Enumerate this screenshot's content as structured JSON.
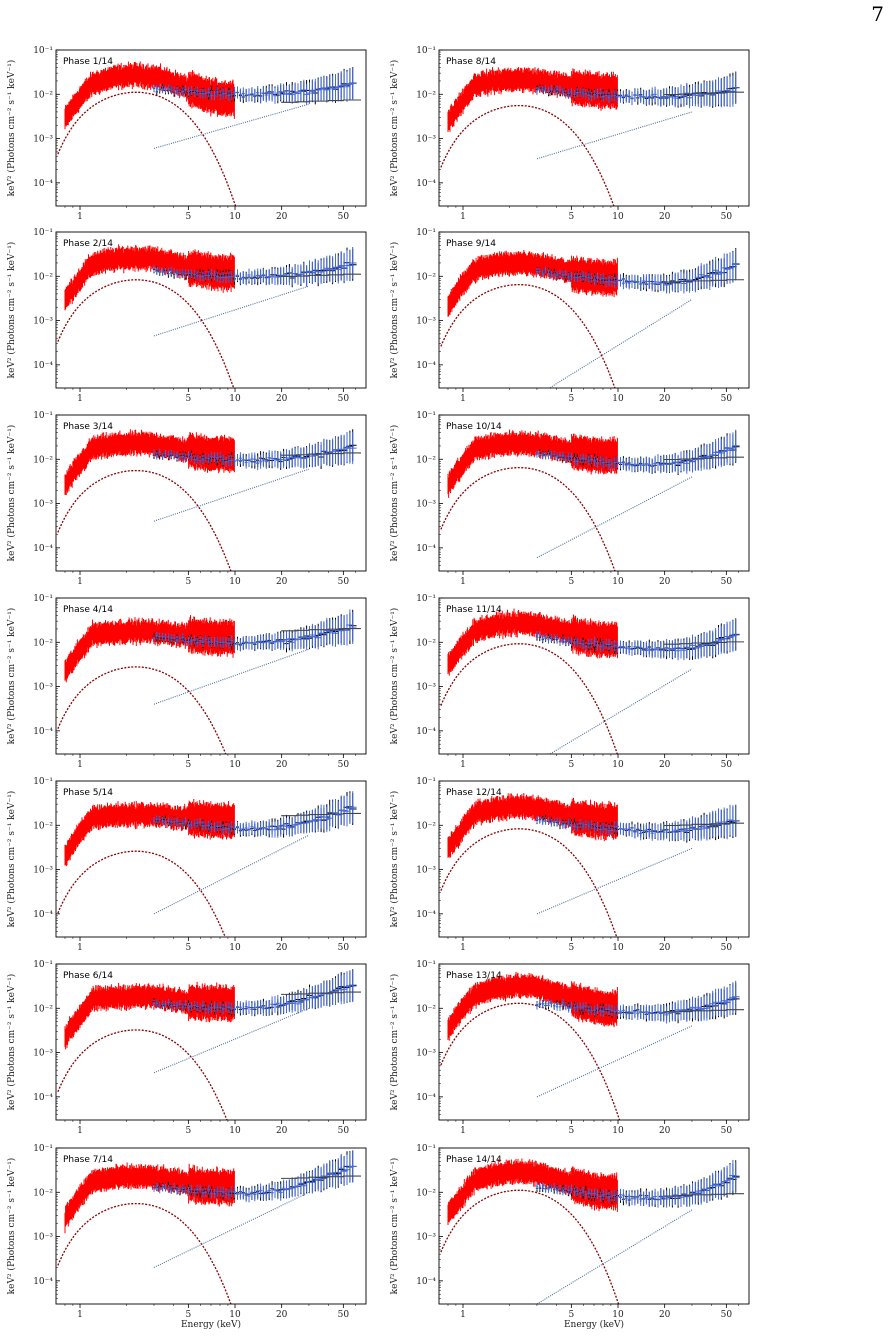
{
  "page_number": "7",
  "colors": {
    "xmm_data": "#ff0000",
    "fpma_data": "#000000",
    "fpmb_data": "#4169e1",
    "model_component": "#8b0000",
    "powerlaw_component": "#4a6e9a",
    "total_model": "#444444"
  },
  "axis_text": {
    "ylabel": "keV² (Photons cm⁻² s⁻¹ keV⁻¹)",
    "xlabel": "Energy (keV)"
  },
  "chart_data": [
    {
      "type": "line",
      "title": "Phase 1/14",
      "xlabel": "",
      "ylabel": "keV² (Photons cm⁻² s⁻¹ keV⁻¹)",
      "xscale": "log",
      "yscale": "log",
      "xlim": [
        0.7,
        70
      ],
      "ylim": [
        3e-05,
        0.1
      ],
      "xticks": [
        1,
        5,
        10,
        20,
        50
      ],
      "yticks": [
        "10⁻¹",
        "10⁻²",
        "10⁻³",
        "10⁻⁴"
      ],
      "bb_peak": 0.012,
      "pl_at_3keV": 0.0006,
      "pl_at_30keV": 0.006,
      "total_hi": 0.008
    },
    {
      "type": "line",
      "title": "Phase 2/14",
      "xlabel": "",
      "ylabel": "keV² (Photons cm⁻² s⁻¹ keV⁻¹)",
      "xscale": "log",
      "yscale": "log",
      "xlim": [
        0.7,
        70
      ],
      "ylim": [
        3e-05,
        0.1
      ],
      "xticks": [
        1,
        5,
        10,
        20,
        50
      ],
      "yticks": [
        "10⁻¹",
        "10⁻²",
        "10⁻³",
        "10⁻⁴"
      ],
      "bb_peak": 0.009,
      "pl_at_3keV": 0.00045,
      "pl_at_30keV": 0.006,
      "total_hi": 0.012
    },
    {
      "type": "line",
      "title": "Phase 3/14",
      "xlabel": "",
      "ylabel": "keV² (Photons cm⁻² s⁻¹ keV⁻¹)",
      "xscale": "log",
      "yscale": "log",
      "xlim": [
        0.7,
        70
      ],
      "ylim": [
        3e-05,
        0.1
      ],
      "xticks": [
        1,
        5,
        10,
        20,
        50
      ],
      "yticks": [
        "10⁻¹",
        "10⁻²",
        "10⁻³",
        "10⁻⁴"
      ],
      "bb_peak": 0.006,
      "pl_at_3keV": 0.0004,
      "pl_at_30keV": 0.006,
      "total_hi": 0.015
    },
    {
      "type": "line",
      "title": "Phase 4/14",
      "xlabel": "",
      "ylabel": "keV² (Photons cm⁻² s⁻¹ keV⁻¹)",
      "xscale": "log",
      "yscale": "log",
      "xlim": [
        0.7,
        70
      ],
      "ylim": [
        3e-05,
        0.1
      ],
      "xticks": [
        1,
        5,
        10,
        20,
        50
      ],
      "yticks": [
        "10⁻¹",
        "10⁻²",
        "10⁻³",
        "10⁻⁴"
      ],
      "bb_peak": 0.003,
      "pl_at_3keV": 0.0004,
      "pl_at_30keV": 0.007,
      "total_hi": 0.022
    },
    {
      "type": "line",
      "title": "Phase 5/14",
      "xlabel": "",
      "ylabel": "keV² (Photons cm⁻² s⁻¹ keV⁻¹)",
      "xscale": "log",
      "yscale": "log",
      "xlim": [
        0.7,
        70
      ],
      "ylim": [
        3e-05,
        0.1
      ],
      "xticks": [
        1,
        5,
        10,
        20,
        50
      ],
      "yticks": [
        "10⁻¹",
        "10⁻²",
        "10⁻³",
        "10⁻⁴"
      ],
      "bb_peak": 0.0028,
      "pl_at_3keV": 0.0001,
      "pl_at_30keV": 0.006,
      "total_hi": 0.02
    },
    {
      "type": "line",
      "title": "Phase 6/14",
      "xlabel": "",
      "ylabel": "keV² (Photons cm⁻² s⁻¹ keV⁻¹)",
      "xscale": "log",
      "yscale": "log",
      "xlim": [
        0.7,
        70
      ],
      "ylim": [
        3e-05,
        0.1
      ],
      "xticks": [
        1,
        5,
        10,
        20,
        50
      ],
      "yticks": [
        "10⁻¹",
        "10⁻²",
        "10⁻³",
        "10⁻⁴"
      ],
      "bb_peak": 0.0035,
      "pl_at_3keV": 0.00035,
      "pl_at_30keV": 0.01,
      "total_hi": 0.025
    },
    {
      "type": "line",
      "title": "Phase 7/14",
      "xlabel": "Energy (keV)",
      "ylabel": "keV² (Photons cm⁻² s⁻¹ keV⁻¹)",
      "xscale": "log",
      "yscale": "log",
      "xlim": [
        0.7,
        70
      ],
      "ylim": [
        3e-05,
        0.1
      ],
      "xticks": [
        1,
        5,
        10,
        20,
        50
      ],
      "yticks": [
        "10⁻¹",
        "10⁻²",
        "10⁻³",
        "10⁻⁴"
      ],
      "bb_peak": 0.006,
      "pl_at_3keV": 0.0002,
      "pl_at_30keV": 0.01,
      "total_hi": 0.025
    },
    {
      "type": "line",
      "title": "Phase 8/14",
      "xlabel": "",
      "ylabel": "keV² (Photons cm⁻² s⁻¹ keV⁻¹)",
      "xscale": "log",
      "yscale": "log",
      "xlim": [
        0.7,
        70
      ],
      "ylim": [
        3e-05,
        0.1
      ],
      "xticks": [
        1,
        5,
        10,
        20,
        50
      ],
      "yticks": [
        "10⁻¹",
        "10⁻²",
        "10⁻³",
        "10⁻⁴"
      ],
      "bb_peak": 0.006,
      "pl_at_3keV": 0.00035,
      "pl_at_30keV": 0.004,
      "total_hi": 0.012
    },
    {
      "type": "line",
      "title": "Phase 9/14",
      "xlabel": "",
      "ylabel": "keV² (Photons cm⁻² s⁻¹ keV⁻¹)",
      "xscale": "log",
      "yscale": "log",
      "xlim": [
        0.7,
        70
      ],
      "ylim": [
        3e-05,
        0.1
      ],
      "xticks": [
        1,
        5,
        10,
        20,
        50
      ],
      "yticks": [
        "10⁻¹",
        "10⁻²",
        "10⁻³",
        "10⁻⁴"
      ],
      "bb_peak": 0.007,
      "pl_at_3keV": 2e-05,
      "pl_at_30keV": 0.003,
      "total_hi": 0.009
    },
    {
      "type": "line",
      "title": "Phase 10/14",
      "xlabel": "",
      "ylabel": "keV² (Photons cm⁻² s⁻¹ keV⁻¹)",
      "xscale": "log",
      "yscale": "log",
      "xlim": [
        0.7,
        70
      ],
      "ylim": [
        3e-05,
        0.1
      ],
      "xticks": [
        1,
        5,
        10,
        20,
        50
      ],
      "yticks": [
        "10⁻¹",
        "10⁻²",
        "10⁻³",
        "10⁻⁴"
      ],
      "bb_peak": 0.007,
      "pl_at_3keV": 6e-05,
      "pl_at_30keV": 0.004,
      "total_hi": 0.012
    },
    {
      "type": "line",
      "title": "Phase 11/14",
      "xlabel": "",
      "ylabel": "keV² (Photons cm⁻² s⁻¹ keV⁻¹)",
      "xscale": "log",
      "yscale": "log",
      "xlim": [
        0.7,
        70
      ],
      "ylim": [
        3e-05,
        0.1
      ],
      "xticks": [
        1,
        5,
        10,
        20,
        50
      ],
      "yticks": [
        "10⁻¹",
        "10⁻²",
        "10⁻³",
        "10⁻⁴"
      ],
      "bb_peak": 0.01,
      "pl_at_3keV": 2e-05,
      "pl_at_30keV": 0.0025,
      "total_hi": 0.011
    },
    {
      "type": "line",
      "title": "Phase 12/14",
      "xlabel": "",
      "ylabel": "keV² (Photons cm⁻² s⁻¹ keV⁻¹)",
      "xscale": "log",
      "yscale": "log",
      "xlim": [
        0.7,
        70
      ],
      "ylim": [
        3e-05,
        0.1
      ],
      "xticks": [
        1,
        5,
        10,
        20,
        50
      ],
      "yticks": [
        "10⁻¹",
        "10⁻²",
        "10⁻³",
        "10⁻⁴"
      ],
      "bb_peak": 0.009,
      "pl_at_3keV": 0.0001,
      "pl_at_30keV": 0.003,
      "total_hi": 0.012
    },
    {
      "type": "line",
      "title": "Phase 13/14",
      "xlabel": "",
      "ylabel": "keV² (Photons cm⁻² s⁻¹ keV⁻¹)",
      "xscale": "log",
      "yscale": "log",
      "xlim": [
        0.7,
        70
      ],
      "ylim": [
        3e-05,
        0.1
      ],
      "xticks": [
        1,
        5,
        10,
        20,
        50
      ],
      "yticks": [
        "10⁻¹",
        "10⁻²",
        "10⁻³",
        "10⁻⁴"
      ],
      "bb_peak": 0.014,
      "pl_at_3keV": 0.0001,
      "pl_at_30keV": 0.004,
      "total_hi": 0.01
    },
    {
      "type": "line",
      "title": "Phase 14/14",
      "xlabel": "Energy (keV)",
      "ylabel": "keV² (Photons cm⁻² s⁻¹ keV⁻¹)",
      "xscale": "log",
      "yscale": "log",
      "xlim": [
        0.7,
        70
      ],
      "ylim": [
        3e-05,
        0.1
      ],
      "xticks": [
        1,
        5,
        10,
        20,
        50
      ],
      "yticks": [
        "10⁻¹",
        "10⁻²",
        "10⁻³",
        "10⁻⁴"
      ],
      "bb_peak": 0.012,
      "pl_at_3keV": 3e-05,
      "pl_at_30keV": 0.004,
      "total_hi": 0.01
    }
  ]
}
